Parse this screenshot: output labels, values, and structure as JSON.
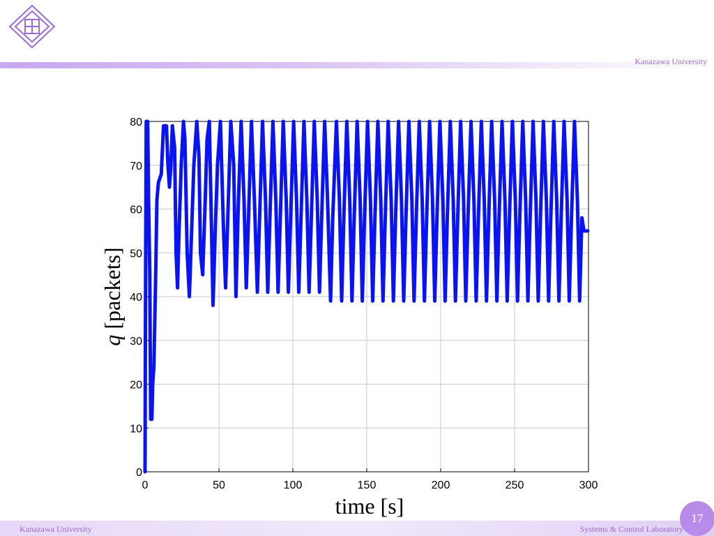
{
  "header": {
    "university": "Kanazawa University"
  },
  "footer": {
    "left": "Kanazawa University",
    "right": "Systems & Control Laboratory",
    "page_number": "17"
  },
  "colors": {
    "accent": "#b78be8",
    "series": "#0a14f0",
    "logo": "#9b6bd6"
  },
  "chart_data": {
    "type": "line",
    "title": "",
    "xlabel": "time [s]",
    "ylabel_var": "q",
    "ylabel_unit": " [packets]",
    "xlim": [
      0,
      300
    ],
    "ylim": [
      0,
      80
    ],
    "xticks": [
      0,
      50,
      100,
      150,
      200,
      250,
      300
    ],
    "yticks": [
      0,
      10,
      20,
      30,
      40,
      50,
      60,
      70,
      80
    ],
    "grid": true,
    "series": [
      {
        "name": "",
        "points": [
          [
            0,
            0
          ],
          [
            0.3,
            36
          ],
          [
            0.8,
            80
          ],
          [
            1.8,
            80
          ],
          [
            2.4,
            62
          ],
          [
            3.2,
            45
          ],
          [
            3.8,
            12
          ],
          [
            4.6,
            12
          ],
          [
            5.2,
            20
          ],
          [
            6,
            24
          ],
          [
            7.2,
            45
          ],
          [
            8,
            62
          ],
          [
            9,
            66
          ],
          [
            11,
            68
          ],
          [
            12.5,
            79
          ],
          [
            14.5,
            79
          ],
          [
            15.5,
            70
          ],
          [
            16.5,
            65
          ],
          [
            17.5,
            70
          ],
          [
            18.5,
            79
          ],
          [
            20,
            74
          ],
          [
            21,
            50
          ],
          [
            22,
            42
          ],
          [
            23,
            55
          ],
          [
            24.5,
            70
          ],
          [
            26,
            80
          ],
          [
            27,
            76
          ],
          [
            28.5,
            50
          ],
          [
            30,
            40
          ],
          [
            31.5,
            55
          ],
          [
            33,
            70
          ],
          [
            35,
            80
          ],
          [
            36.5,
            72
          ],
          [
            37.5,
            50
          ],
          [
            39,
            45
          ],
          [
            40.5,
            60
          ],
          [
            42,
            76
          ],
          [
            43.5,
            80
          ],
          [
            45,
            55
          ],
          [
            46,
            38
          ],
          [
            47.5,
            55
          ],
          [
            49,
            70
          ],
          [
            51,
            80
          ],
          [
            53,
            56
          ],
          [
            54.5,
            42
          ],
          [
            56,
            58
          ],
          [
            58,
            80
          ],
          [
            60,
            70
          ],
          [
            61.5,
            40
          ],
          [
            63,
            60
          ],
          [
            65,
            80
          ],
          [
            67,
            62
          ],
          [
            68.5,
            42
          ],
          [
            70,
            58
          ],
          [
            72,
            80
          ],
          [
            74,
            62
          ],
          [
            76,
            41
          ],
          [
            77.5,
            58
          ],
          [
            79.5,
            80
          ],
          [
            81.5,
            62
          ],
          [
            83,
            41
          ],
          [
            84.5,
            58
          ],
          [
            86.5,
            80
          ],
          [
            88.5,
            62
          ],
          [
            90,
            41
          ],
          [
            91.5,
            58
          ],
          [
            93.5,
            80
          ],
          [
            95.5,
            62
          ],
          [
            97,
            41
          ],
          [
            98.5,
            58
          ],
          [
            100.5,
            80
          ],
          [
            102.5,
            62
          ],
          [
            104,
            41
          ],
          [
            105.5,
            58
          ],
          [
            107.5,
            80
          ],
          [
            109.5,
            62
          ],
          [
            111,
            41
          ],
          [
            112.5,
            58
          ],
          [
            114.5,
            80
          ],
          [
            116.5,
            62
          ],
          [
            118,
            41
          ],
          [
            119.5,
            58
          ],
          [
            121.5,
            80
          ],
          [
            123.5,
            62
          ],
          [
            125.5,
            39
          ],
          [
            127,
            58
          ],
          [
            129.5,
            80
          ],
          [
            131.5,
            62
          ],
          [
            133,
            39
          ],
          [
            134.5,
            58
          ],
          [
            136.5,
            80
          ],
          [
            138.5,
            62
          ],
          [
            140,
            39
          ],
          [
            141.5,
            58
          ],
          [
            143.5,
            80
          ],
          [
            145.5,
            62
          ],
          [
            147,
            39
          ],
          [
            148.5,
            58
          ],
          [
            150.5,
            80
          ],
          [
            152.5,
            62
          ],
          [
            154,
            39
          ],
          [
            155.5,
            58
          ],
          [
            157.5,
            80
          ],
          [
            159.5,
            62
          ],
          [
            161,
            39
          ],
          [
            162.5,
            58
          ],
          [
            164.5,
            80
          ],
          [
            166.5,
            62
          ],
          [
            168,
            39
          ],
          [
            169.5,
            58
          ],
          [
            171.5,
            80
          ],
          [
            173.5,
            62
          ],
          [
            175,
            39
          ],
          [
            176.5,
            58
          ],
          [
            178.5,
            80
          ],
          [
            180.5,
            62
          ],
          [
            182,
            39
          ],
          [
            183.5,
            58
          ],
          [
            185.5,
            80
          ],
          [
            187.5,
            62
          ],
          [
            189,
            39
          ],
          [
            190.5,
            58
          ],
          [
            192.5,
            80
          ],
          [
            194.5,
            62
          ],
          [
            196,
            39
          ],
          [
            197.5,
            58
          ],
          [
            199.5,
            80
          ],
          [
            201.5,
            62
          ],
          [
            203,
            39
          ],
          [
            204.5,
            58
          ],
          [
            206.5,
            80
          ],
          [
            208.5,
            62
          ],
          [
            210,
            39
          ],
          [
            211.5,
            58
          ],
          [
            213.5,
            80
          ],
          [
            215.5,
            62
          ],
          [
            217,
            39
          ],
          [
            218.5,
            58
          ],
          [
            220.5,
            80
          ],
          [
            222.5,
            62
          ],
          [
            224,
            39
          ],
          [
            225.5,
            58
          ],
          [
            227.5,
            80
          ],
          [
            229.5,
            62
          ],
          [
            231,
            39
          ],
          [
            232.5,
            58
          ],
          [
            234.5,
            80
          ],
          [
            236.5,
            62
          ],
          [
            238,
            39
          ],
          [
            239.5,
            58
          ],
          [
            241.5,
            80
          ],
          [
            243.5,
            62
          ],
          [
            245,
            39
          ],
          [
            246.5,
            58
          ],
          [
            248.5,
            80
          ],
          [
            250.5,
            62
          ],
          [
            252,
            39
          ],
          [
            253.5,
            58
          ],
          [
            255.5,
            80
          ],
          [
            257.5,
            62
          ],
          [
            259,
            39
          ],
          [
            260.5,
            58
          ],
          [
            262.5,
            80
          ],
          [
            264.5,
            62
          ],
          [
            266,
            39
          ],
          [
            267.5,
            58
          ],
          [
            269.5,
            80
          ],
          [
            271.5,
            62
          ],
          [
            273,
            39
          ],
          [
            274.5,
            58
          ],
          [
            276.5,
            80
          ],
          [
            278.5,
            62
          ],
          [
            280,
            39
          ],
          [
            281.5,
            58
          ],
          [
            283.5,
            80
          ],
          [
            285.5,
            62
          ],
          [
            287,
            39
          ],
          [
            288.5,
            58
          ],
          [
            290.5,
            80
          ],
          [
            292.5,
            62
          ],
          [
            294,
            39
          ],
          [
            295.5,
            58
          ],
          [
            297,
            55
          ],
          [
            299.5,
            55
          ]
        ]
      }
    ]
  }
}
